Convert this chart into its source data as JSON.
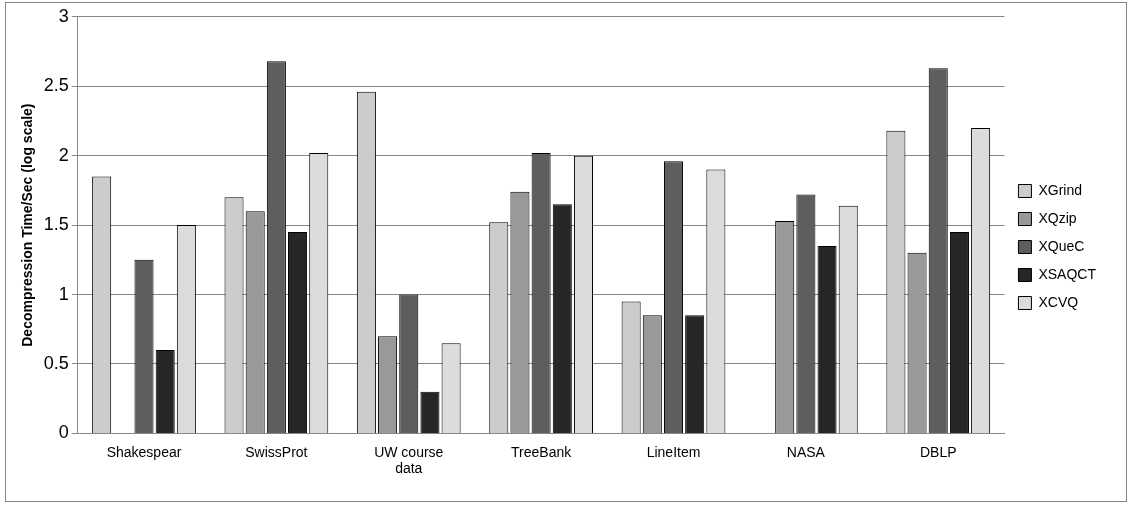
{
  "chart_data": {
    "type": "bar",
    "ylabel": "Decompression Time/Sec (log scale)",
    "categories": [
      "Shakespear",
      "SwissProt",
      "UW course data",
      "TreeBank",
      "LineItem",
      "NASA",
      "DBLP"
    ],
    "series": [
      {
        "name": "XGrind",
        "color": "#cccccc",
        "values": [
          1.85,
          1.7,
          2.46,
          1.52,
          0.95,
          null,
          2.18
        ]
      },
      {
        "name": "XQzip",
        "color": "#999999",
        "values": [
          null,
          1.6,
          0.7,
          1.74,
          0.85,
          1.53,
          1.3
        ]
      },
      {
        "name": "XQueC",
        "color": "#5e5e5e",
        "values": [
          1.25,
          2.68,
          1.0,
          2.02,
          1.96,
          1.72,
          2.63
        ]
      },
      {
        "name": "XSAQCT",
        "color": "#262626",
        "values": [
          0.6,
          1.45,
          0.3,
          1.65,
          0.85,
          1.35,
          1.45
        ]
      },
      {
        "name": "XCVQ",
        "color": "#dcdcdc",
        "values": [
          1.5,
          2.02,
          0.65,
          2.0,
          1.9,
          1.64,
          2.2
        ]
      }
    ],
    "ylim": [
      0,
      3
    ],
    "yticks": [
      0,
      0.5,
      1,
      1.5,
      2,
      2.5,
      3
    ],
    "grid": "y",
    "legend": "right"
  }
}
